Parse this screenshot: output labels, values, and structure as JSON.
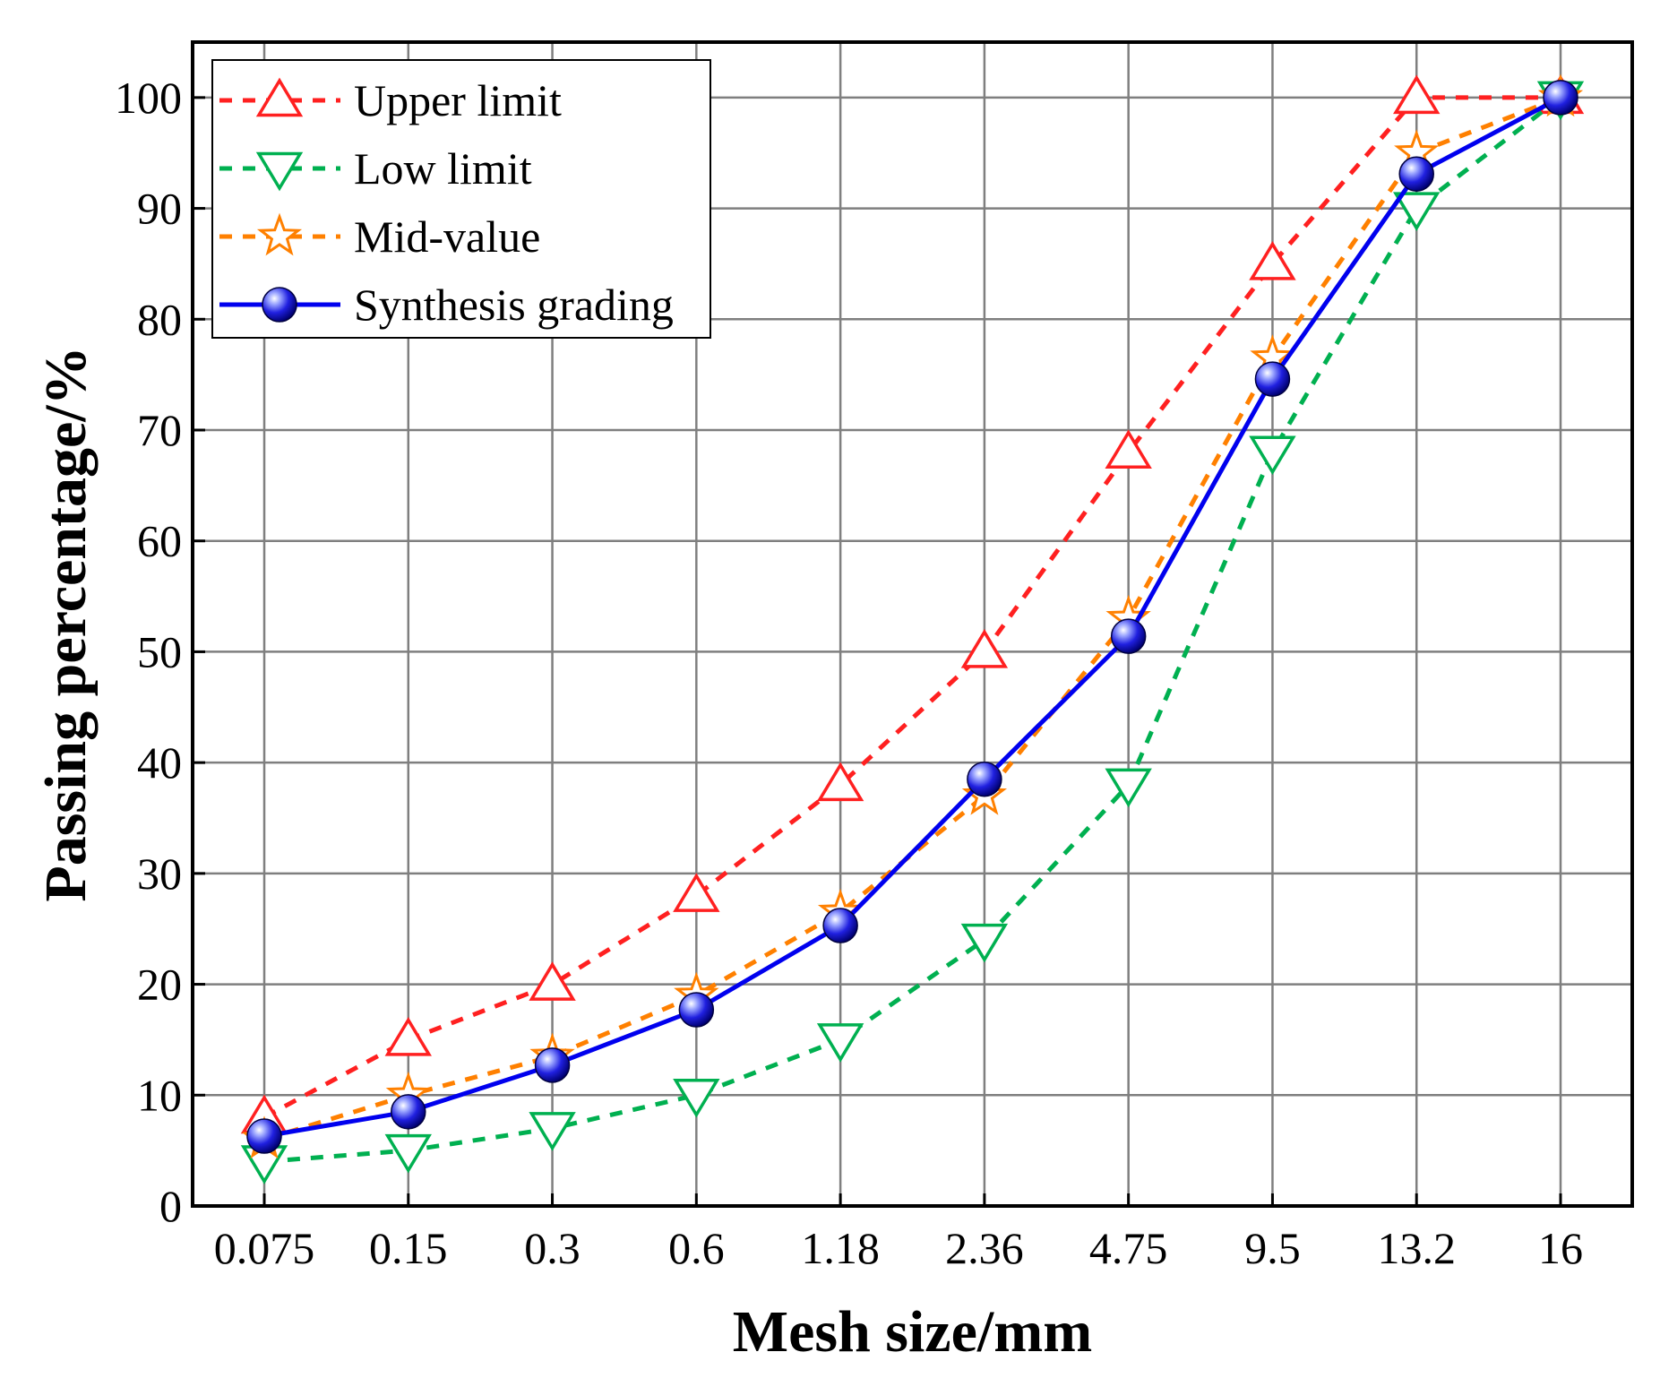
{
  "chart_data": {
    "type": "line",
    "title": "",
    "xlabel": "Mesh size/mm",
    "ylabel": "Passing percentage/%",
    "categories": [
      "0.075",
      "0.15",
      "0.3",
      "0.6",
      "1.18",
      "2.36",
      "4.75",
      "9.5",
      "13.2",
      "16"
    ],
    "ylim": [
      0,
      105
    ],
    "yticks": [
      0,
      10,
      20,
      30,
      40,
      50,
      60,
      70,
      80,
      90,
      100
    ],
    "grid": true,
    "legend_position": "top-left",
    "series": [
      {
        "name": "Upper limit",
        "values": [
          8,
          15,
          20,
          28,
          38,
          50,
          68,
          85,
          100,
          100
        ],
        "color": "#ff2020",
        "line_style": "dashed",
        "marker": "triangle-up-open"
      },
      {
        "name": "Low limit",
        "values": [
          4,
          5,
          7,
          10,
          15,
          24,
          38,
          68,
          90,
          100
        ],
        "color": "#00b050",
        "line_style": "dashed",
        "marker": "triangle-down-open"
      },
      {
        "name": "Mid-value",
        "values": [
          6,
          10,
          13.5,
          19,
          26.5,
          37,
          53,
          76.5,
          95,
          100
        ],
        "color": "#ff8000",
        "line_style": "dashed",
        "marker": "star-open"
      },
      {
        "name": "Synthesis grading",
        "values": [
          6.3,
          8.5,
          12.7,
          17.7,
          25.3,
          38.5,
          51.4,
          74.6,
          93.1,
          100
        ],
        "color": "#0000ee",
        "line_style": "solid",
        "marker": "sphere"
      }
    ]
  }
}
